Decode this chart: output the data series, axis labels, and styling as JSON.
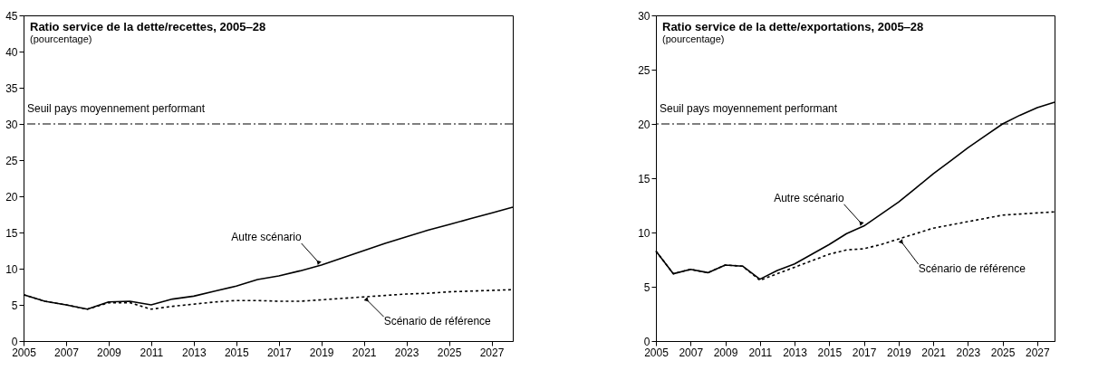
{
  "chart_data": [
    {
      "type": "line",
      "title": "Ratio service de la dette/recettes, 2005‒28",
      "subtitle": "(pourcentage)",
      "x": [
        2005,
        2006,
        2007,
        2008,
        2009,
        2010,
        2011,
        2012,
        2013,
        2014,
        2015,
        2016,
        2017,
        2018,
        2019,
        2020,
        2021,
        2022,
        2023,
        2024,
        2025,
        2026,
        2027,
        2028
      ],
      "series": [
        {
          "color": "#000000",
          "line_style": "solid",
          "values": [
            6.4,
            5.5,
            5.0,
            4.4,
            5.4,
            5.5,
            5.0,
            5.8,
            6.2,
            6.9,
            7.6,
            8.5,
            9.0,
            9.7,
            10.5,
            11.5,
            12.5,
            13.5,
            14.4,
            15.3,
            16.1,
            16.9,
            17.7,
            18.5
          ]
        },
        {
          "color": "#000000",
          "line_style": "dotted",
          "values": [
            6.4,
            5.5,
            5.0,
            4.4,
            5.3,
            5.3,
            4.4,
            4.8,
            5.1,
            5.4,
            5.6,
            5.6,
            5.5,
            5.5,
            5.7,
            5.9,
            6.1,
            6.3,
            6.5,
            6.6,
            6.8,
            6.9,
            7.0,
            7.1
          ]
        }
      ],
      "xlim": [
        2005,
        2028
      ],
      "xticks": [
        2005,
        2007,
        2009,
        2011,
        2013,
        2015,
        2017,
        2019,
        2021,
        2023,
        2025,
        2027
      ],
      "ylim": [
        0,
        45
      ],
      "yticks": [
        0,
        5,
        10,
        15,
        20,
        25,
        30,
        35,
        40,
        45
      ],
      "grid": false,
      "ref_lines": [
        {
          "axis": "y",
          "value": 30,
          "label": "Seuil pays moyennement performant",
          "color": "#000000",
          "line_style": "dashed"
        }
      ],
      "annotations": [
        {
          "text": "Autre scénario",
          "x": 2019,
          "y": 10.5
        },
        {
          "text": "Scénario de référence",
          "x": 2021,
          "y": 6.1
        }
      ]
    },
    {
      "type": "line",
      "title": "Ratio service de la dette/exportations, 2005‒28",
      "subtitle": "(pourcentage)",
      "x": [
        2005,
        2006,
        2007,
        2008,
        2009,
        2010,
        2011,
        2012,
        2013,
        2014,
        2015,
        2016,
        2017,
        2018,
        2019,
        2020,
        2021,
        2022,
        2023,
        2024,
        2025,
        2026,
        2027,
        2028
      ],
      "series": [
        {
          "color": "#000000",
          "line_style": "solid",
          "values": [
            8.3,
            6.2,
            6.6,
            6.3,
            7.0,
            6.9,
            5.7,
            6.5,
            7.1,
            8.0,
            8.9,
            9.9,
            10.6,
            11.7,
            12.8,
            14.1,
            15.4,
            16.6,
            17.8,
            18.9,
            20.0,
            20.8,
            21.5,
            22.0
          ]
        },
        {
          "color": "#000000",
          "line_style": "dotted",
          "values": [
            8.3,
            6.2,
            6.6,
            6.3,
            7.0,
            6.9,
            5.6,
            6.2,
            6.8,
            7.4,
            8.0,
            8.4,
            8.5,
            8.9,
            9.4,
            9.9,
            10.4,
            10.7,
            11.0,
            11.3,
            11.6,
            11.7,
            11.8,
            11.9
          ]
        }
      ],
      "xlim": [
        2005,
        2028
      ],
      "xticks": [
        2005,
        2007,
        2009,
        2011,
        2013,
        2015,
        2017,
        2019,
        2021,
        2023,
        2025,
        2027
      ],
      "ylim": [
        0,
        30
      ],
      "yticks": [
        0,
        5,
        10,
        15,
        20,
        25,
        30
      ],
      "grid": false,
      "ref_lines": [
        {
          "axis": "y",
          "value": 20,
          "label": "Seuil pays moyennement performant",
          "color": "#000000",
          "line_style": "dashed"
        }
      ],
      "annotations": [
        {
          "text": "Autre scénario",
          "x": 2017,
          "y": 10.6
        },
        {
          "text": "Scénario de référence",
          "x": 2019,
          "y": 9.4
        }
      ]
    }
  ]
}
